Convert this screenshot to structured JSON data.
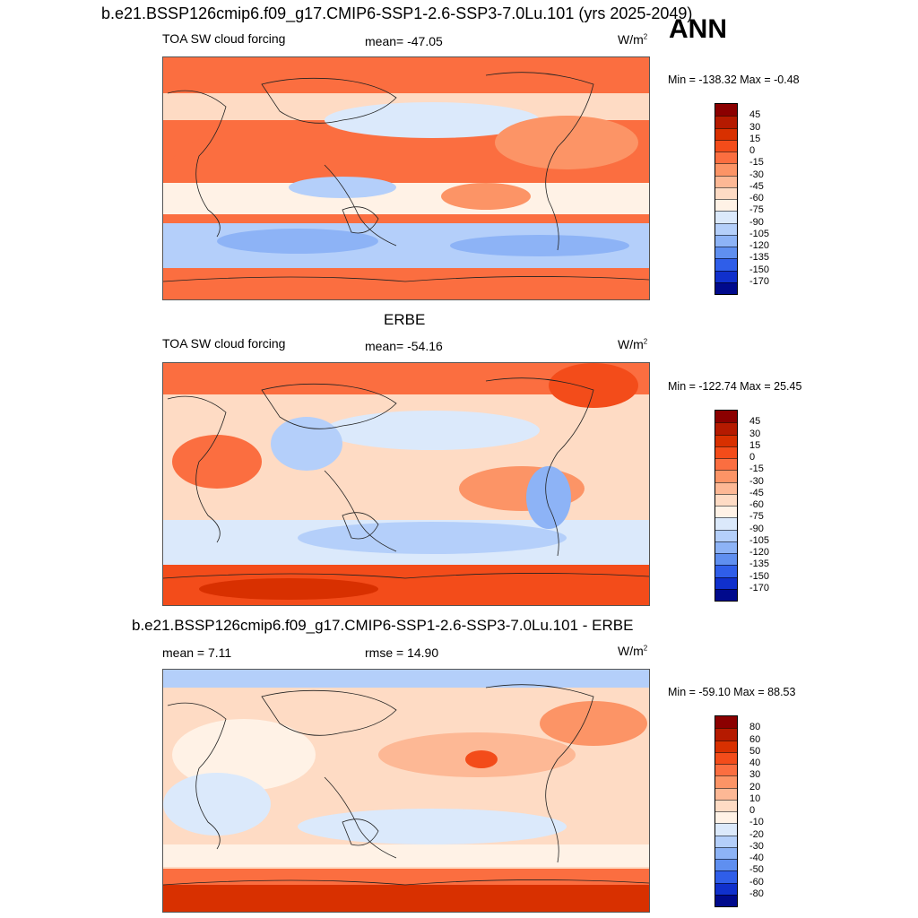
{
  "title": "b.e21.BSSP126cmip6.f09_g17.CMIP6-SSP1-2.6-SSP3-7.0Lu.101 (yrs 2025-2049)",
  "season": "ANN",
  "chart_data": [
    {
      "type": "heatmap",
      "panel_title": "",
      "left_label": "TOA SW cloud forcing",
      "center_label": "mean= -47.05",
      "units": "W/m",
      "units_sup": "2",
      "min_max": "Min = -138.32 Max =  -0.48",
      "mean": -47.05,
      "min": -138.32,
      "max": -0.48,
      "levels": [
        "45",
        "30",
        "15",
        "0",
        "-15",
        "-30",
        "-45",
        "-60",
        "-75",
        "-90",
        "-105",
        "-120",
        "-135",
        "-150",
        "-170"
      ],
      "colors": [
        "#8b0000",
        "#b51a00",
        "#d83000",
        "#f34c1a",
        "#fb6e40",
        "#fc9466",
        "#fdb895",
        "#fedbc4",
        "#fff2e6",
        "#dbe9fb",
        "#b4cffa",
        "#8db3f6",
        "#5f8ff0",
        "#2f5ee9",
        "#1030cc",
        "#000a8c"
      ]
    },
    {
      "type": "heatmap",
      "panel_title": "ERBE",
      "left_label": "TOA SW cloud forcing",
      "center_label": "mean= -54.16",
      "units": "W/m",
      "units_sup": "2",
      "min_max": "Min = -122.74 Max =  25.45",
      "mean": -54.16,
      "min": -122.74,
      "max": 25.45,
      "levels": [
        "45",
        "30",
        "15",
        "0",
        "-15",
        "-30",
        "-45",
        "-60",
        "-75",
        "-90",
        "-105",
        "-120",
        "-135",
        "-150",
        "-170"
      ],
      "colors": [
        "#8b0000",
        "#b51a00",
        "#d83000",
        "#f34c1a",
        "#fb6e40",
        "#fc9466",
        "#fdb895",
        "#fedbc4",
        "#fff2e6",
        "#dbe9fb",
        "#b4cffa",
        "#8db3f6",
        "#5f8ff0",
        "#2f5ee9",
        "#1030cc",
        "#000a8c"
      ]
    },
    {
      "type": "heatmap",
      "panel_title": "b.e21.BSSP126cmip6.f09_g17.CMIP6-SSP1-2.6-SSP3-7.0Lu.101 - ERBE",
      "left_label": "mean =   7.11",
      "center_label": "rmse =  14.90",
      "units": "W/m",
      "units_sup": "2",
      "min_max": "Min = -59.10 Max =  88.53",
      "mean": 7.11,
      "rmse": 14.9,
      "min": -59.1,
      "max": 88.53,
      "levels": [
        "80",
        "60",
        "50",
        "40",
        "30",
        "20",
        "10",
        "0",
        "-10",
        "-20",
        "-30",
        "-40",
        "-50",
        "-60",
        "-80"
      ],
      "colors": [
        "#8b0000",
        "#b51a00",
        "#d83000",
        "#f34c1a",
        "#fb6e40",
        "#fc9466",
        "#fdb895",
        "#fedbc4",
        "#fff2e6",
        "#dbe9fb",
        "#b4cffa",
        "#8db3f6",
        "#5f8ff0",
        "#2f5ee9",
        "#1030cc",
        "#000a8c"
      ]
    }
  ]
}
